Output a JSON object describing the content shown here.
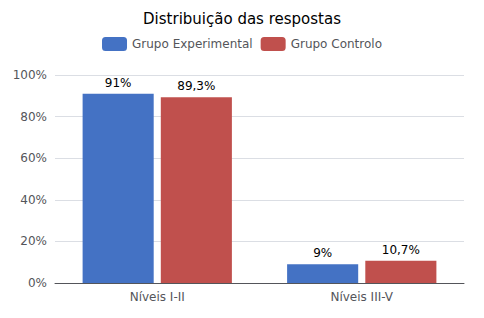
{
  "chart_data": {
    "type": "bar",
    "title": "Distribuição das respostas",
    "categories": [
      "Níveis I-II",
      "Níveis III-V"
    ],
    "series": [
      {
        "name": "Grupo Experimental",
        "color": "#4472C4",
        "values": [
          91,
          9
        ],
        "value_labels": [
          "91%",
          "9%"
        ]
      },
      {
        "name": "Grupo Controlo",
        "color": "#C0504D",
        "values": [
          89.3,
          10.7
        ],
        "value_labels": [
          "89,3%",
          "10,7%"
        ]
      }
    ],
    "ylim": [
      0,
      100
    ],
    "yticks": [
      {
        "value": 0,
        "label": "0%"
      },
      {
        "value": 20,
        "label": "20%"
      },
      {
        "value": 40,
        "label": "40%"
      },
      {
        "value": 60,
        "label": "60%"
      },
      {
        "value": 80,
        "label": "80%"
      },
      {
        "value": 100,
        "label": "100%"
      }
    ],
    "grid": true,
    "legend": "top",
    "data_labels": true
  }
}
